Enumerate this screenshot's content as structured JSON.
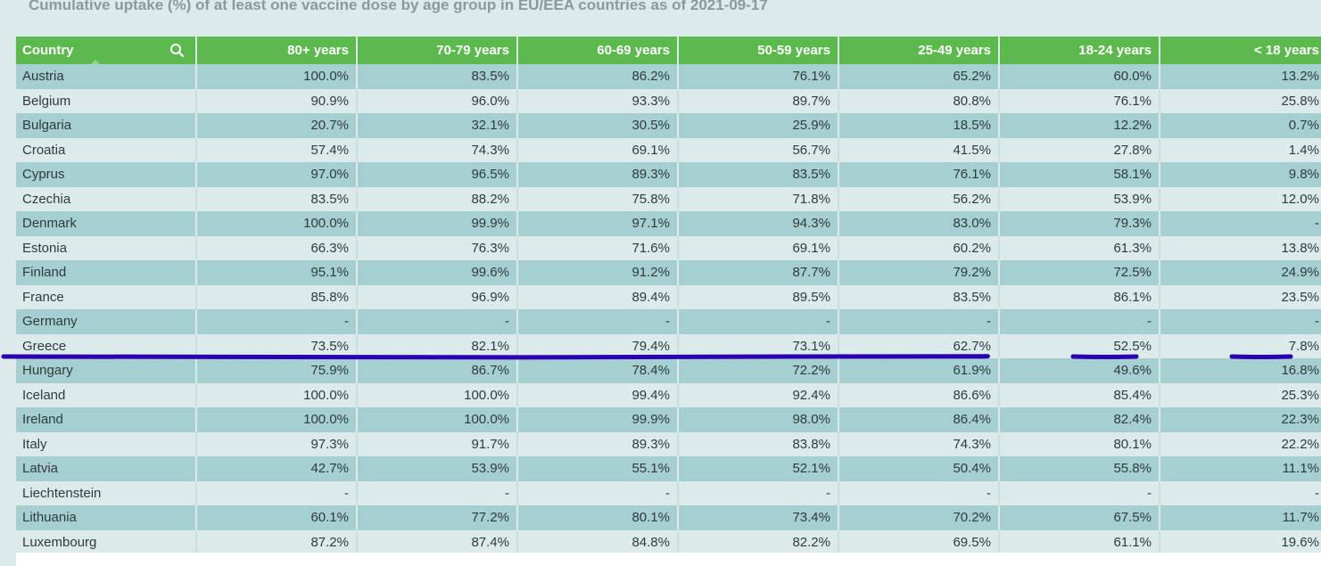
{
  "chart_data": {
    "type": "table",
    "title": "Cumulative uptake (%) of at least one vaccine dose by age group in EU/EEA countries as of 2021-09-17",
    "columns": [
      "Country",
      "80+ years",
      "70-79 years",
      "60-69 years",
      "50-59 years",
      "25-49 years",
      "18-24 years",
      "< 18 years"
    ],
    "rows": [
      [
        "Austria",
        "100.0%",
        "83.5%",
        "86.2%",
        "76.1%",
        "65.2%",
        "60.0%",
        "13.2%"
      ],
      [
        "Belgium",
        "90.9%",
        "96.0%",
        "93.3%",
        "89.7%",
        "80.8%",
        "76.1%",
        "25.8%"
      ],
      [
        "Bulgaria",
        "20.7%",
        "32.1%",
        "30.5%",
        "25.9%",
        "18.5%",
        "12.2%",
        "0.7%"
      ],
      [
        "Croatia",
        "57.4%",
        "74.3%",
        "69.1%",
        "56.7%",
        "41.5%",
        "27.8%",
        "1.4%"
      ],
      [
        "Cyprus",
        "97.0%",
        "96.5%",
        "89.3%",
        "83.5%",
        "76.1%",
        "58.1%",
        "9.8%"
      ],
      [
        "Czechia",
        "83.5%",
        "88.2%",
        "75.8%",
        "71.8%",
        "56.2%",
        "53.9%",
        "12.0%"
      ],
      [
        "Denmark",
        "100.0%",
        "99.9%",
        "97.1%",
        "94.3%",
        "83.0%",
        "79.3%",
        "-"
      ],
      [
        "Estonia",
        "66.3%",
        "76.3%",
        "71.6%",
        "69.1%",
        "60.2%",
        "61.3%",
        "13.8%"
      ],
      [
        "Finland",
        "95.1%",
        "99.6%",
        "91.2%",
        "87.7%",
        "79.2%",
        "72.5%",
        "24.9%"
      ],
      [
        "France",
        "85.8%",
        "96.9%",
        "89.4%",
        "89.5%",
        "83.5%",
        "86.1%",
        "23.5%"
      ],
      [
        "Germany",
        "-",
        "-",
        "-",
        "-",
        "-",
        "-",
        "-"
      ],
      [
        "Greece",
        "73.5%",
        "82.1%",
        "79.4%",
        "73.1%",
        "62.7%",
        "52.5%",
        "7.8%"
      ],
      [
        "Hungary",
        "75.9%",
        "86.7%",
        "78.4%",
        "72.2%",
        "61.9%",
        "49.6%",
        "16.8%"
      ],
      [
        "Iceland",
        "100.0%",
        "100.0%",
        "99.4%",
        "92.4%",
        "86.6%",
        "85.4%",
        "25.3%"
      ],
      [
        "Ireland",
        "100.0%",
        "100.0%",
        "99.9%",
        "98.0%",
        "86.4%",
        "82.4%",
        "22.3%"
      ],
      [
        "Italy",
        "97.3%",
        "91.7%",
        "89.3%",
        "83.8%",
        "74.3%",
        "80.1%",
        "22.2%"
      ],
      [
        "Latvia",
        "42.7%",
        "53.9%",
        "55.1%",
        "52.1%",
        "50.4%",
        "55.8%",
        "11.1%"
      ],
      [
        "Liechtenstein",
        "-",
        "-",
        "-",
        "-",
        "-",
        "-",
        "-"
      ],
      [
        "Lithuania",
        "60.1%",
        "77.2%",
        "80.1%",
        "73.4%",
        "70.2%",
        "67.5%",
        "11.7%"
      ],
      [
        "Luxembourg",
        "87.2%",
        "87.4%",
        "84.8%",
        "82.2%",
        "69.5%",
        "61.1%",
        "19.6%"
      ]
    ]
  },
  "colors": {
    "header_bg": "#5bb94d",
    "row_odd": "#a5cfd1",
    "row_even": "#dcebea",
    "annotation_stroke": "#2a00b0"
  },
  "icons": {
    "search": "search-icon"
  }
}
